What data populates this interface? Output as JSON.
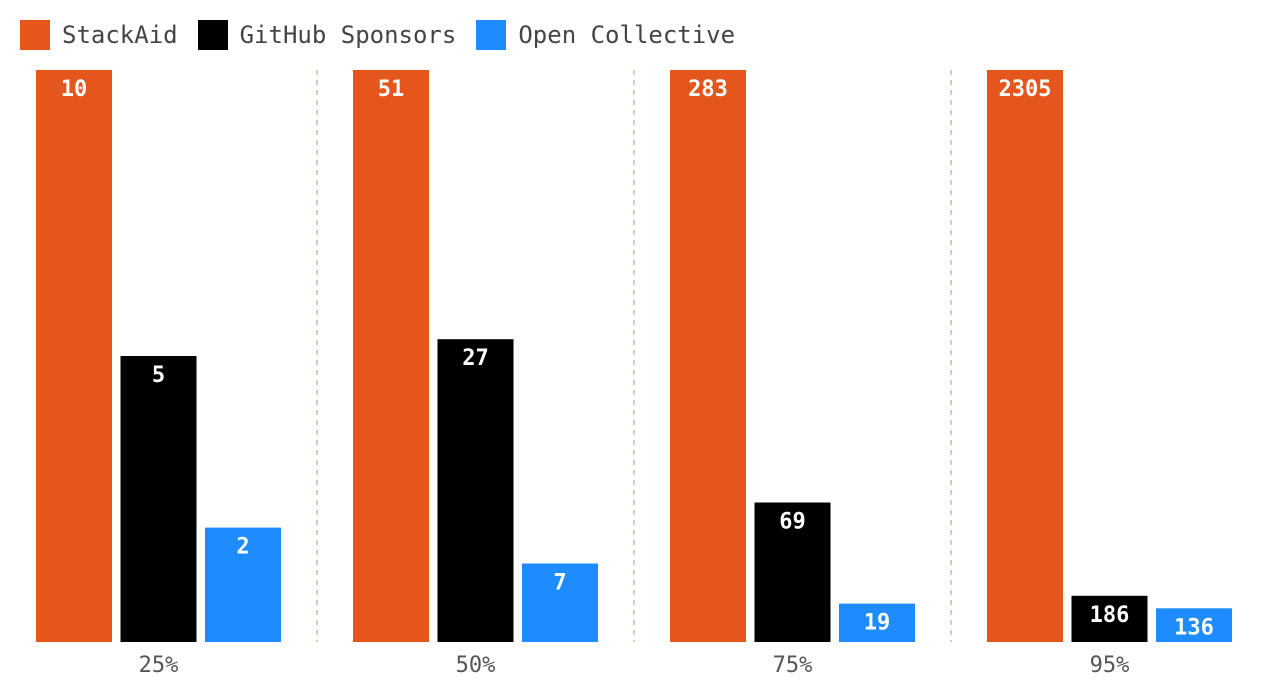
{
  "chart_data": {
    "type": "bar",
    "title": "",
    "xlabel": "",
    "ylabel": "",
    "grid": false,
    "legend_position": "top-left",
    "categories": [
      "25%",
      "50%",
      "75%",
      "95%"
    ],
    "series": [
      {
        "name": "StackAid",
        "color": "#e5561c",
        "values": [
          10,
          51,
          283,
          2305
        ],
        "labels": [
          "10",
          "51",
          "283",
          "2305"
        ]
      },
      {
        "name": "GitHub Sponsors",
        "color": "#000000",
        "values": [
          5,
          27,
          69,
          186
        ],
        "labels": [
          "5",
          "27",
          "69",
          "186"
        ]
      },
      {
        "name": "Open Collective",
        "color": "#1e8cff",
        "values": [
          2,
          7,
          19,
          136
        ],
        "labels": [
          "2",
          "7",
          "19",
          "136"
        ]
      }
    ],
    "note": "each bar is scaled relative to the largest value within its own category",
    "separator_color": "#c9bba8"
  }
}
